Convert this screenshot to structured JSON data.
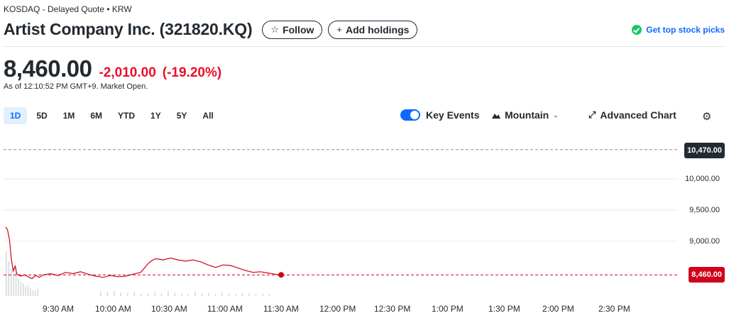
{
  "header": {
    "exchange_line": "KOSDAQ - Delayed Quote • KRW",
    "title": "Artist Company Inc. (321820.KQ)",
    "follow_label": "Follow",
    "add_holdings_label": "Add holdings",
    "top_picks_label": "Get top stock picks"
  },
  "quote": {
    "price": "8,460.00",
    "change": "-2,010.00",
    "change_percent": "(-19.20%)",
    "as_of": "As of 12:10:52 PM GMT+9. Market Open."
  },
  "ranges": [
    "1D",
    "5D",
    "1M",
    "6M",
    "YTD",
    "1Y",
    "5Y",
    "All"
  ],
  "active_range": "1D",
  "controls": {
    "key_events_label": "Key Events",
    "key_events_on": true,
    "chart_type_label": "Mountain",
    "advanced_chart_label": "Advanced Chart"
  },
  "icons": [
    "star-icon",
    "plus-icon",
    "check-circle-icon",
    "toggle-switch-icon",
    "mountain-icon",
    "chevron-down-icon",
    "expand-icon",
    "gear-icon"
  ],
  "colors": {
    "accent": "#0f69ff",
    "negative": "#eb0f29",
    "line": "#d0021b",
    "picks_check": "#1ac567",
    "previous_close_tag": "#232a31"
  },
  "chart_data": {
    "type": "line",
    "previous_close_label": "10,470.00",
    "last_price_label": "8,460.00",
    "y_tick_labels": [
      "10,000.00",
      "9,500.00",
      "9,000.00"
    ],
    "x_tick_labels": [
      "9:30 AM",
      "10:00 AM",
      "10:30 AM",
      "11:00 AM",
      "11:30 AM",
      "12:00 PM",
      "12:30 PM",
      "1:00 PM",
      "1:30 PM",
      "2:00 PM",
      "2:30 PM"
    ],
    "ylim": [
      8200,
      10650
    ],
    "previous_close": 10470,
    "last_price": 8460,
    "x_unit": "minutes since 9:00 AM",
    "series": [
      {
        "points": [
          [
            0,
            9230
          ],
          [
            1,
            9180
          ],
          [
            2,
            9030
          ],
          [
            3,
            8720
          ],
          [
            4,
            8520
          ],
          [
            5,
            8600
          ],
          [
            6,
            8470
          ],
          [
            8,
            8440
          ],
          [
            10,
            8460
          ],
          [
            12,
            8430
          ],
          [
            14,
            8400
          ],
          [
            16,
            8450
          ],
          [
            18,
            8420
          ],
          [
            20,
            8460
          ],
          [
            24,
            8480
          ],
          [
            28,
            8450
          ],
          [
            32,
            8500
          ],
          [
            36,
            8480
          ],
          [
            40,
            8510
          ],
          [
            44,
            8470
          ],
          [
            48,
            8440
          ],
          [
            52,
            8420
          ],
          [
            56,
            8450
          ],
          [
            60,
            8430
          ],
          [
            64,
            8440
          ],
          [
            68,
            8470
          ],
          [
            72,
            8500
          ],
          [
            74,
            8570
          ],
          [
            76,
            8640
          ],
          [
            78,
            8690
          ],
          [
            80,
            8720
          ],
          [
            84,
            8700
          ],
          [
            88,
            8730
          ],
          [
            92,
            8700
          ],
          [
            96,
            8680
          ],
          [
            100,
            8700
          ],
          [
            104,
            8670
          ],
          [
            108,
            8620
          ],
          [
            112,
            8580
          ],
          [
            116,
            8620
          ],
          [
            120,
            8610
          ],
          [
            124,
            8570
          ],
          [
            128,
            8530
          ],
          [
            132,
            8500
          ],
          [
            136,
            8510
          ],
          [
            140,
            8490
          ],
          [
            144,
            8470
          ],
          [
            147,
            8460
          ]
        ]
      }
    ],
    "volume_bars": [
      0.9,
      0.7,
      0.55,
      0.45,
      0.6,
      0.35,
      0.3,
      0.25,
      0.2,
      0.22,
      0.15,
      0.12,
      0.1,
      0.14,
      0.09,
      0.08,
      0.1,
      0.07,
      0.06,
      0.08,
      0.05,
      0.06,
      0.07,
      0.05,
      0.09,
      0.06,
      0.05,
      0.04,
      0.08,
      0.05,
      0.06,
      0.04,
      0.07,
      0.05,
      0.04,
      0.06,
      0.05,
      0.04,
      0.05,
      0.04
    ],
    "grid": true
  }
}
